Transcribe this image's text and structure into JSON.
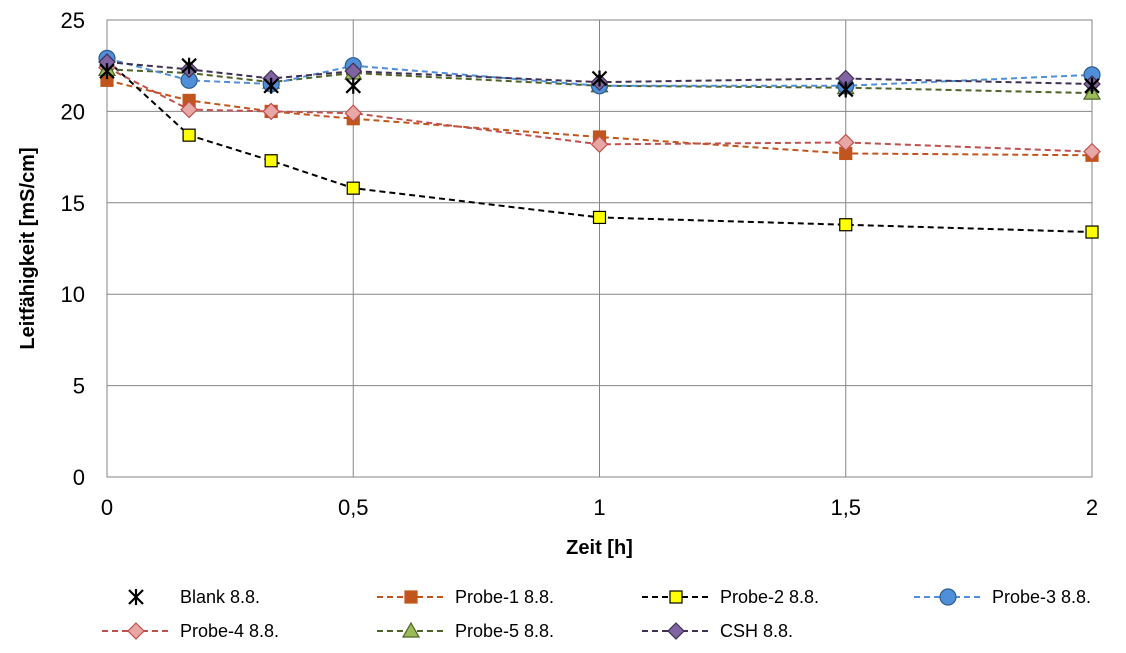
{
  "chart_data": {
    "type": "line",
    "title": "",
    "xlabel": "Zeit [h]",
    "ylabel": "Leitfähigkeit [mS/cm]",
    "xlim": [
      0,
      2
    ],
    "ylim": [
      0,
      25
    ],
    "x_ticks": [
      0,
      0.5,
      1,
      1.5,
      2
    ],
    "x_tick_labels": [
      "0",
      "0,5",
      "1",
      "1,5",
      "2"
    ],
    "y_ticks": [
      0,
      5,
      10,
      15,
      20,
      25
    ],
    "y_tick_labels": [
      "0",
      "5",
      "10",
      "15",
      "20",
      "25"
    ],
    "grid": true,
    "legend_position": "bottom",
    "series": [
      {
        "name": "Blank 8.8.",
        "color": "#000000",
        "marker": "star",
        "line": "none",
        "x": [
          0,
          0.1667,
          0.3333,
          0.5,
          1,
          1.5,
          2
        ],
        "y": [
          22.2,
          22.5,
          21.4,
          21.4,
          21.8,
          21.2,
          21.4
        ]
      },
      {
        "name": "Probe-1 8.8.",
        "color": "#C0561D",
        "marker": "square",
        "line": "dashed",
        "x": [
          0,
          0.1667,
          0.3333,
          0.5,
          1,
          1.5,
          2
        ],
        "y": [
          21.7,
          20.6,
          20.0,
          19.6,
          18.6,
          17.7,
          17.6
        ]
      },
      {
        "name": "Probe-2 8.8.",
        "color": "#000000",
        "marker": "square",
        "markerFill": "#FFFF00",
        "line": "dashed",
        "x": [
          0,
          0.1667,
          0.3333,
          0.5,
          1,
          1.5,
          2
        ],
        "y": [
          22.8,
          18.7,
          17.3,
          15.8,
          14.2,
          13.8,
          13.4
        ]
      },
      {
        "name": "Probe-3 8.8.",
        "color": "#4F8FD9",
        "marker": "circle",
        "markerFill": "#4F8FD9",
        "line": "dashed",
        "x": [
          0,
          0.1667,
          0.3333,
          0.5,
          1,
          1.5,
          2
        ],
        "y": [
          22.9,
          21.7,
          21.5,
          22.5,
          21.4,
          21.4,
          22.0
        ]
      },
      {
        "name": "Probe-4 8.8.",
        "color": "#C0504D",
        "marker": "diamond",
        "markerFill": "#E6A7A5",
        "line": "dashed",
        "x": [
          0,
          0.1667,
          0.3333,
          0.5,
          1,
          1.5,
          2
        ],
        "y": [
          22.4,
          20.1,
          20.0,
          19.9,
          18.2,
          18.3,
          17.8
        ]
      },
      {
        "name": "Probe-5 8.8.",
        "color": "#4F6228",
        "marker": "triangle",
        "markerFill": "#9BBB59",
        "line": "dashed",
        "x": [
          0,
          0.1667,
          0.3333,
          0.5,
          1,
          1.5,
          2
        ],
        "y": [
          22.3,
          22.1,
          21.6,
          22.1,
          21.4,
          21.3,
          21.0
        ]
      },
      {
        "name": "CSH 8.8.",
        "color": "#403152",
        "marker": "diamond",
        "markerFill": "#8064A2",
        "line": "dashed",
        "x": [
          0,
          0.1667,
          0.3333,
          0.5,
          1,
          1.5,
          2
        ],
        "y": [
          22.7,
          22.3,
          21.8,
          22.2,
          21.6,
          21.8,
          21.5
        ]
      }
    ]
  }
}
